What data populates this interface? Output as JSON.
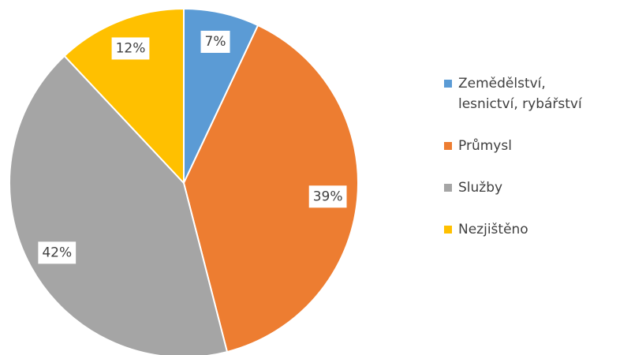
{
  "chart_data": {
    "type": "pie",
    "categories": [
      "Zemědělství, lesnictví, rybářství",
      "Průmysl",
      "Služby",
      "Nezjištěno"
    ],
    "values": [
      7,
      39,
      42,
      12
    ],
    "value_labels": [
      "7%",
      "39%",
      "42%",
      "12%"
    ],
    "colors": [
      "#5b9bd5",
      "#ed7d31",
      "#a5a5a5",
      "#ffc000"
    ],
    "legend": "right"
  }
}
